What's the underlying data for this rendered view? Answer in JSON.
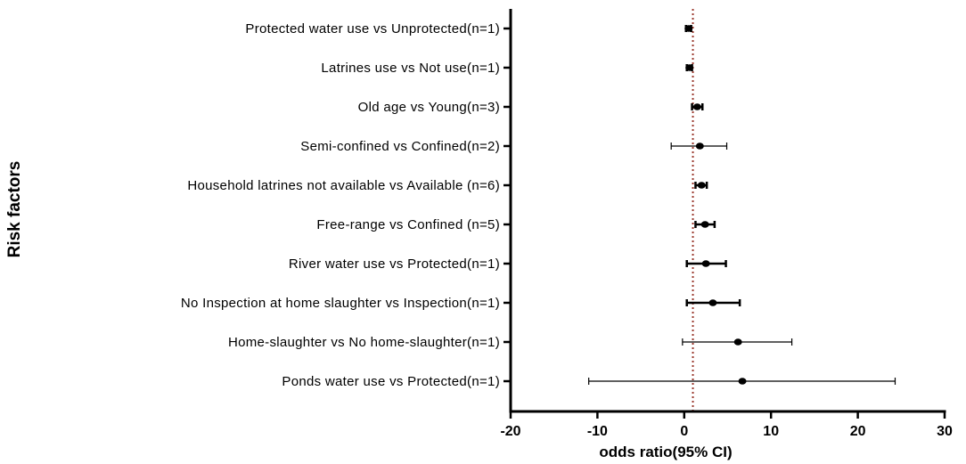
{
  "chart_data": {
    "type": "forest",
    "xlabel": "odds ratio(95% CI)",
    "ylabel": "Risk factors",
    "xlim": [
      -20,
      30
    ],
    "xticks": [
      -20,
      -10,
      0,
      10,
      20,
      30
    ],
    "reference_line": 1,
    "reference_line_color": "#9b3a2f",
    "point_color": "#000000",
    "categories": [
      "Protected water use vs Unprotected(n=1)",
      "Latrines use vs Not use(n=1)",
      "Old age vs Young(n=3)",
      "Semi-confined vs Confined(n=2)",
      "Household latrines not available vs Available (n=6)",
      "Free-range  vs Confined (n=5)",
      "River water use vs Protected(n=1)",
      "No Inspection at home slaughter vs Inspection(n=1)",
      "Home-slaughter vs No home-slaughter(n=1)",
      "Ponds water use vs Protected(n=1)"
    ],
    "estimates": [
      0.5,
      0.6,
      1.5,
      1.8,
      2.0,
      2.4,
      2.5,
      3.3,
      6.2,
      6.7
    ],
    "lower": [
      0.2,
      0.3,
      0.9,
      -1.5,
      1.3,
      1.3,
      0.3,
      0.3,
      -0.2,
      -11.0
    ],
    "upper": [
      0.8,
      0.9,
      2.1,
      4.9,
      2.6,
      3.5,
      4.8,
      6.4,
      12.4,
      24.3
    ]
  }
}
